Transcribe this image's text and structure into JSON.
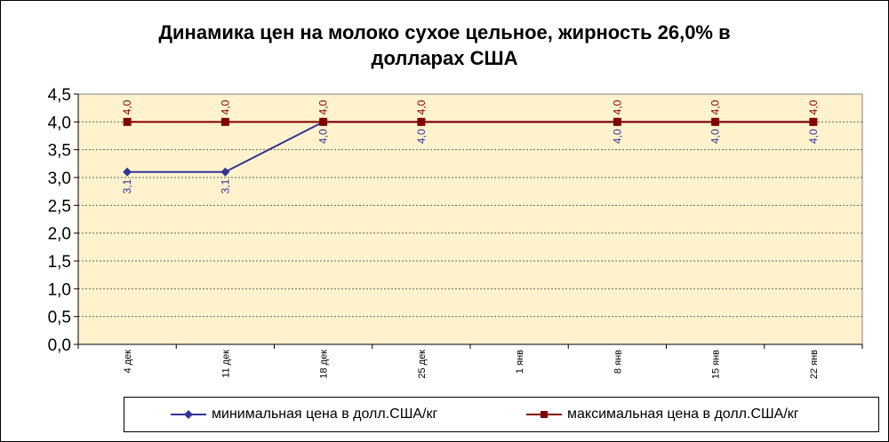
{
  "chart_data": {
    "type": "line",
    "title_lines": [
      "Динамика цен на молоко сухое цельное, жирность 26,0%  в",
      "долларах США"
    ],
    "categories": [
      "4 дек",
      "11 дек",
      "18 дек",
      "25 дек",
      "1 янв",
      "8 янв",
      "15 янв",
      "22 янв"
    ],
    "series": [
      {
        "name": "минимальная цена в долл.США/кг",
        "values": [
          3.1,
          3.1,
          4.0,
          4.0,
          null,
          4.0,
          4.0,
          4.0
        ],
        "labels": [
          "3,1",
          "3,1",
          "4,0",
          "4,0",
          null,
          "4,0",
          "4,0",
          "4,0"
        ],
        "color": "#333399",
        "marker": "diamond"
      },
      {
        "name": "максимальная цена в долл.США/кг",
        "values": [
          4.0,
          4.0,
          4.0,
          4.0,
          null,
          4.0,
          4.0,
          4.0
        ],
        "labels": [
          "4,0",
          "4,0",
          "4,0",
          "4,0",
          null,
          "4,0",
          "4,0",
          "4,0"
        ],
        "color": "#800000",
        "marker": "square"
      }
    ],
    "ylim": [
      0,
      4.5
    ],
    "yticks": [
      "0,0",
      "0,5",
      "1,0",
      "1,5",
      "2,0",
      "2,5",
      "3,0",
      "3,5",
      "4,0",
      "4,5"
    ],
    "grid": true,
    "plot_background": "#FFF2CC",
    "legend_position": "bottom"
  }
}
